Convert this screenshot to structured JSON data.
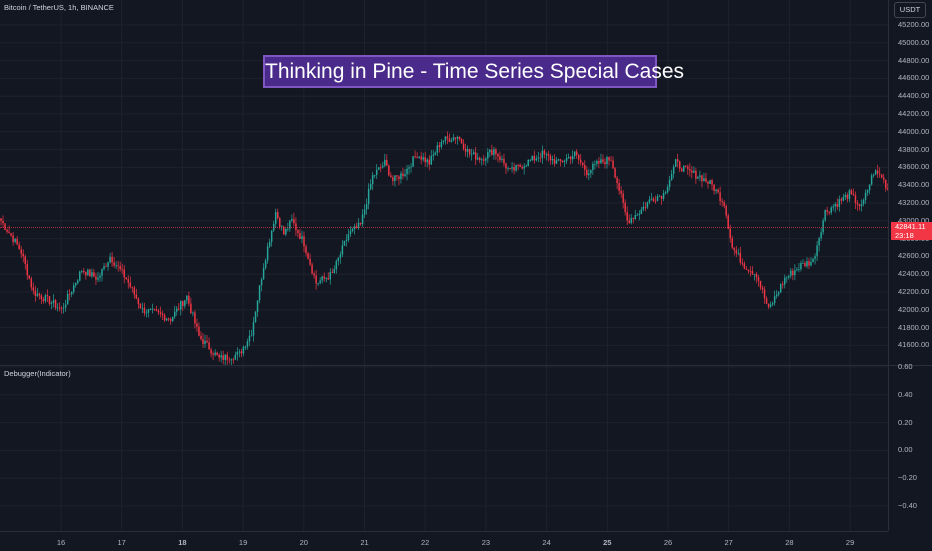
{
  "symbol": {
    "title": "Bitcoin / TetherUS, 1h, BINANCE"
  },
  "currency_button": "USDT",
  "banner": {
    "text": "Thinking in Pine - Time Series Special Cases"
  },
  "indicator": {
    "label": "Debugger(Indicator)"
  },
  "price_axis": {
    "ticks": [
      "45200.00",
      "45000.00",
      "44800.00",
      "44600.00",
      "44400.00",
      "44200.00",
      "44000.00",
      "43800.00",
      "43600.00",
      "43400.00",
      "43200.00",
      "43000.00",
      "42800.00",
      "42600.00",
      "42400.00",
      "42200.00",
      "42000.00",
      "41800.00",
      "41600.00"
    ],
    "current_price": "42841.11",
    "countdown": "23:18"
  },
  "indicator_axis": {
    "ticks": [
      "0.60",
      "0.40",
      "0.20",
      "0.00",
      "−0.20",
      "−0.40"
    ]
  },
  "time_axis": {
    "ticks": [
      {
        "label": "16",
        "bold": false
      },
      {
        "label": "17",
        "bold": false
      },
      {
        "label": "18",
        "bold": true
      },
      {
        "label": "19",
        "bold": false
      },
      {
        "label": "20",
        "bold": false
      },
      {
        "label": "21",
        "bold": false
      },
      {
        "label": "22",
        "bold": false
      },
      {
        "label": "23",
        "bold": false
      },
      {
        "label": "24",
        "bold": false
      },
      {
        "label": "25",
        "bold": true
      },
      {
        "label": "26",
        "bold": false
      },
      {
        "label": "27",
        "bold": false
      },
      {
        "label": "28",
        "bold": false
      },
      {
        "label": "29",
        "bold": false
      }
    ]
  },
  "colors": {
    "up": "#26a69a",
    "down": "#f23645",
    "background": "#131722",
    "grid": "#1e222d",
    "banner_border": "#7e57c2",
    "banner_fill": "#4a2a8a"
  },
  "chart_data": {
    "type": "candlestick",
    "symbol": "BTCUSDT",
    "interval": "1h",
    "y_range": [
      41550,
      45300
    ],
    "anchors": [
      [
        0,
        43000
      ],
      [
        6,
        42800
      ],
      [
        10,
        42650
      ],
      [
        16,
        42200
      ],
      [
        24,
        42100
      ],
      [
        30,
        42000
      ],
      [
        40,
        42450
      ],
      [
        48,
        42350
      ],
      [
        54,
        42600
      ],
      [
        62,
        42350
      ],
      [
        70,
        42000
      ],
      [
        78,
        41950
      ],
      [
        84,
        41900
      ],
      [
        92,
        42150
      ],
      [
        98,
        41700
      ],
      [
        108,
        41450
      ],
      [
        118,
        41500
      ],
      [
        124,
        41750
      ],
      [
        130,
        42500
      ],
      [
        136,
        43100
      ],
      [
        140,
        42850
      ],
      [
        144,
        43000
      ],
      [
        150,
        42750
      ],
      [
        156,
        42300
      ],
      [
        164,
        42400
      ],
      [
        172,
        42850
      ],
      [
        178,
        42950
      ],
      [
        184,
        43500
      ],
      [
        190,
        43650
      ],
      [
        194,
        43450
      ],
      [
        200,
        43550
      ],
      [
        206,
        43750
      ],
      [
        212,
        43650
      ],
      [
        218,
        43900
      ],
      [
        226,
        43950
      ],
      [
        232,
        43750
      ],
      [
        238,
        43700
      ],
      [
        244,
        43800
      ],
      [
        252,
        43550
      ],
      [
        260,
        43650
      ],
      [
        268,
        43750
      ],
      [
        276,
        43650
      ],
      [
        284,
        43750
      ],
      [
        290,
        43550
      ],
      [
        296,
        43650
      ],
      [
        302,
        43700
      ],
      [
        306,
        43350
      ],
      [
        310,
        43000
      ],
      [
        316,
        43100
      ],
      [
        322,
        43250
      ],
      [
        328,
        43300
      ],
      [
        334,
        43650
      ],
      [
        340,
        43550
      ],
      [
        346,
        43500
      ],
      [
        352,
        43400
      ],
      [
        358,
        43200
      ],
      [
        362,
        42700
      ],
      [
        368,
        42500
      ],
      [
        374,
        42400
      ],
      [
        380,
        42000
      ],
      [
        388,
        42350
      ],
      [
        396,
        42500
      ],
      [
        402,
        42550
      ],
      [
        408,
        43100
      ],
      [
        414,
        43200
      ],
      [
        420,
        43300
      ],
      [
        426,
        43150
      ],
      [
        432,
        43550
      ],
      [
        436,
        43500
      ],
      [
        442,
        43200
      ],
      [
        446,
        43000
      ],
      [
        452,
        42900
      ],
      [
        456,
        42841
      ]
    ]
  }
}
